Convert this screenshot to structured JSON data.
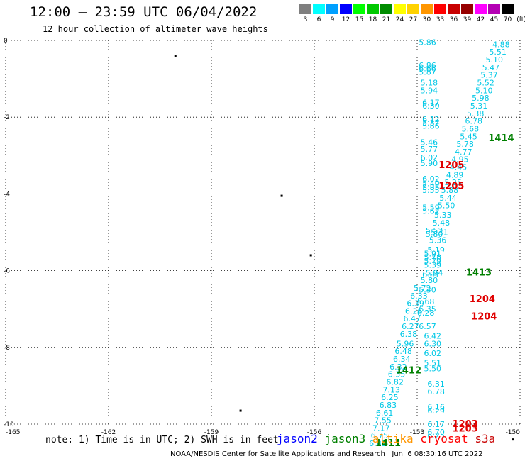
{
  "title": "12:00 – 23:59 UTC 06/04/2022",
  "subtitle": "12 hour collection of altimeter wave heights",
  "colorbar": {
    "unit_label": "(ft)",
    "swatches": [
      {
        "label": "3",
        "color": "#7f7f7f"
      },
      {
        "label": "6",
        "color": "#00ffff"
      },
      {
        "label": "9",
        "color": "#00a0ff"
      },
      {
        "label": "12",
        "color": "#0000ff"
      },
      {
        "label": "15",
        "color": "#00ff00"
      },
      {
        "label": "18",
        "color": "#00c800"
      },
      {
        "label": "21",
        "color": "#008c00"
      },
      {
        "label": "24",
        "color": "#ffff00"
      },
      {
        "label": "27",
        "color": "#ffd200"
      },
      {
        "label": "30",
        "color": "#ff9600"
      },
      {
        "label": "33",
        "color": "#ff0000"
      },
      {
        "label": "36",
        "color": "#c80000"
      },
      {
        "label": "39",
        "color": "#960000"
      },
      {
        "label": "42",
        "color": "#ff00ff"
      },
      {
        "label": "45",
        "color": "#b400b4"
      },
      {
        "label": "70",
        "color": "#000000"
      }
    ]
  },
  "axes": {
    "lon_ticks": [
      "-165",
      "-162",
      "-159",
      "-156",
      "-153",
      "-150"
    ],
    "lat_ticks": [
      "0",
      "-2",
      "-4",
      "-6",
      "-8",
      "-10"
    ],
    "lon_range": [
      -165,
      -150
    ],
    "lat_range": [
      -10,
      0
    ]
  },
  "point_color": "#00c8e6",
  "swh_points": [
    {
      "lon": -152.7,
      "lat": -0.05,
      "v": "5.86"
    },
    {
      "lon": -152.7,
      "lat": -0.65,
      "v": "6.86"
    },
    {
      "lon": -152.7,
      "lat": -0.73,
      "v": "6.66"
    },
    {
      "lon": -152.7,
      "lat": -0.82,
      "v": "5.87"
    },
    {
      "lon": -152.65,
      "lat": -1.1,
      "v": "5.18"
    },
    {
      "lon": -152.65,
      "lat": -1.3,
      "v": "5.94"
    },
    {
      "lon": -152.6,
      "lat": -1.62,
      "v": "6.17"
    },
    {
      "lon": -152.6,
      "lat": -1.7,
      "v": "6.30"
    },
    {
      "lon": -152.6,
      "lat": -2.05,
      "v": "6.12"
    },
    {
      "lon": -152.6,
      "lat": -2.14,
      "v": "5.37"
    },
    {
      "lon": -152.6,
      "lat": -2.23,
      "v": "5.86"
    },
    {
      "lon": -152.65,
      "lat": -2.65,
      "v": "5.46"
    },
    {
      "lon": -152.65,
      "lat": -2.83,
      "v": "5.77"
    },
    {
      "lon": -152.65,
      "lat": -3.05,
      "v": "6.02"
    },
    {
      "lon": -152.65,
      "lat": -3.2,
      "v": "5.90"
    },
    {
      "lon": -152.6,
      "lat": -3.6,
      "v": "6.02"
    },
    {
      "lon": -152.6,
      "lat": -3.72,
      "v": "5.40"
    },
    {
      "lon": -152.6,
      "lat": -3.83,
      "v": "5.85"
    },
    {
      "lon": -152.6,
      "lat": -3.9,
      "v": "5.55"
    },
    {
      "lon": -152.6,
      "lat": -4.35,
      "v": "5.59"
    },
    {
      "lon": -152.6,
      "lat": -4.45,
      "v": "5.62"
    },
    {
      "lon": -152.5,
      "lat": -4.95,
      "v": "5.52"
    },
    {
      "lon": -152.5,
      "lat": -5.05,
      "v": "5.80"
    },
    {
      "lon": -152.55,
      "lat": -5.55,
      "v": "5.91"
    },
    {
      "lon": -152.55,
      "lat": -5.65,
      "v": "5.78"
    },
    {
      "lon": -152.55,
      "lat": -5.75,
      "v": "5.79"
    },
    {
      "lon": -152.55,
      "lat": -5.85,
      "v": "5.39"
    },
    {
      "lon": -152.5,
      "lat": -6.05,
      "v": "5.94"
    },
    {
      "lon": -152.6,
      "lat": -6.1,
      "v": "6.01"
    },
    {
      "lon": -152.85,
      "lat": -6.45,
      "v": "5.72"
    },
    {
      "lon": -152.95,
      "lat": -6.65,
      "v": "6.33"
    },
    {
      "lon": -153.05,
      "lat": -6.85,
      "v": "6.39"
    },
    {
      "lon": -153.1,
      "lat": -7.05,
      "v": "6.26"
    },
    {
      "lon": -153.15,
      "lat": -7.25,
      "v": "6.47"
    },
    {
      "lon": -153.2,
      "lat": -7.45,
      "v": "6.27"
    },
    {
      "lon": -153.25,
      "lat": -7.65,
      "v": "6.38"
    },
    {
      "lon": -153.35,
      "lat": -7.9,
      "v": "5.96"
    },
    {
      "lon": -153.4,
      "lat": -8.1,
      "v": "6.48"
    },
    {
      "lon": -153.45,
      "lat": -8.3,
      "v": "6.34"
    },
    {
      "lon": -153.55,
      "lat": -8.5,
      "v": "6.32"
    },
    {
      "lon": -153.6,
      "lat": -8.7,
      "v": "6.35"
    },
    {
      "lon": -153.65,
      "lat": -8.9,
      "v": "6.82"
    },
    {
      "lon": -153.75,
      "lat": -9.1,
      "v": "7.13"
    },
    {
      "lon": -153.8,
      "lat": -9.3,
      "v": "6.25"
    },
    {
      "lon": -153.85,
      "lat": -9.5,
      "v": "6.83"
    },
    {
      "lon": -153.95,
      "lat": -9.7,
      "v": "6.61"
    },
    {
      "lon": -154.0,
      "lat": -9.9,
      "v": "7.55"
    },
    {
      "lon": -154.05,
      "lat": -10.1,
      "v": "7.17"
    },
    {
      "lon": -154.1,
      "lat": -10.3,
      "v": "6.75"
    },
    {
      "lon": -154.15,
      "lat": -10.5,
      "v": "6.81"
    },
    {
      "lon": -150.55,
      "lat": -0.1,
      "v": "4.88"
    },
    {
      "lon": -150.65,
      "lat": -0.3,
      "v": "5.51"
    },
    {
      "lon": -150.75,
      "lat": -0.5,
      "v": "5.10"
    },
    {
      "lon": -150.85,
      "lat": -0.7,
      "v": "5.47"
    },
    {
      "lon": -150.9,
      "lat": -0.9,
      "v": "5.37"
    },
    {
      "lon": -151.0,
      "lat": -1.1,
      "v": "5.52"
    },
    {
      "lon": -151.05,
      "lat": -1.3,
      "v": "5.10"
    },
    {
      "lon": -151.15,
      "lat": -1.5,
      "v": "5.98"
    },
    {
      "lon": -151.2,
      "lat": -1.7,
      "v": "5.31"
    },
    {
      "lon": -151.3,
      "lat": -1.9,
      "v": "5.38"
    },
    {
      "lon": -151.35,
      "lat": -2.1,
      "v": "6.78"
    },
    {
      "lon": -151.45,
      "lat": -2.3,
      "v": "5.68"
    },
    {
      "lon": -151.5,
      "lat": -2.5,
      "v": "5.45"
    },
    {
      "lon": -151.6,
      "lat": -2.7,
      "v": "5.78"
    },
    {
      "lon": -151.65,
      "lat": -2.9,
      "v": "4.77"
    },
    {
      "lon": -151.75,
      "lat": -3.1,
      "v": "4.95"
    },
    {
      "lon": -151.8,
      "lat": -3.3,
      "v": "4.45"
    },
    {
      "lon": -151.9,
      "lat": -3.5,
      "v": "4.89"
    },
    {
      "lon": -151.95,
      "lat": -3.7,
      "v": "5.25"
    },
    {
      "lon": -152.05,
      "lat": -3.9,
      "v": "5.88"
    },
    {
      "lon": -152.1,
      "lat": -4.1,
      "v": "5.44"
    },
    {
      "lon": -152.15,
      "lat": -4.3,
      "v": "5.50"
    },
    {
      "lon": -152.25,
      "lat": -4.55,
      "v": "5.33"
    },
    {
      "lon": -152.3,
      "lat": -4.75,
      "v": "5.48"
    },
    {
      "lon": -152.35,
      "lat": -5.0,
      "v": "5.31"
    },
    {
      "lon": -152.4,
      "lat": -5.2,
      "v": "5.36"
    },
    {
      "lon": -152.45,
      "lat": -5.45,
      "v": "5.19"
    },
    {
      "lon": -152.65,
      "lat": -6.25,
      "v": "5.80"
    },
    {
      "lon": -152.7,
      "lat": -6.5,
      "v": "5.30"
    },
    {
      "lon": -152.75,
      "lat": -6.8,
      "v": "5.68"
    },
    {
      "lon": -152.7,
      "lat": -7.0,
      "v": "6.35"
    },
    {
      "lon": -152.75,
      "lat": -7.1,
      "v": "6.28"
    },
    {
      "lon": -152.7,
      "lat": -7.45,
      "v": "6.57"
    },
    {
      "lon": -152.55,
      "lat": -7.7,
      "v": "6.42"
    },
    {
      "lon": -152.55,
      "lat": -7.9,
      "v": "6.30"
    },
    {
      "lon": -152.55,
      "lat": -8.15,
      "v": "6.02"
    },
    {
      "lon": -152.55,
      "lat": -8.4,
      "v": "5.51"
    },
    {
      "lon": -152.55,
      "lat": -8.55,
      "v": "5.50"
    },
    {
      "lon": -152.45,
      "lat": -8.95,
      "v": "6.31"
    },
    {
      "lon": -152.45,
      "lat": -9.15,
      "v": "6.78"
    },
    {
      "lon": -152.45,
      "lat": -9.55,
      "v": "6.16"
    },
    {
      "lon": -152.45,
      "lat": -9.65,
      "v": "6.29"
    },
    {
      "lon": -152.45,
      "lat": -10.0,
      "v": "6.17"
    },
    {
      "lon": -152.45,
      "lat": -10.2,
      "v": "6.70"
    },
    {
      "lon": -152.45,
      "lat": -10.3,
      "v": "6.25"
    }
  ],
  "time_labels": [
    {
      "lon": -150.55,
      "lat": -2.55,
      "t": "1414",
      "color": "#008000"
    },
    {
      "lon": -152.0,
      "lat": -3.25,
      "t": "1205",
      "color": "#e00000"
    },
    {
      "lon": -152.0,
      "lat": -3.8,
      "t": "1205",
      "color": "#e00000"
    },
    {
      "lon": -151.2,
      "lat": -6.05,
      "t": "1413",
      "color": "#008000"
    },
    {
      "lon": -151.1,
      "lat": -6.75,
      "t": "1204",
      "color": "#e00000"
    },
    {
      "lon": -151.05,
      "lat": -7.2,
      "t": "1204",
      "color": "#e00000"
    },
    {
      "lon": -153.25,
      "lat": -8.6,
      "t": "1412",
      "color": "#008000"
    },
    {
      "lon": -151.6,
      "lat": -10.0,
      "t": "1203",
      "color": "#e00000"
    },
    {
      "lon": -151.6,
      "lat": -10.12,
      "t": "1203",
      "color": "#e00000"
    },
    {
      "lon": -153.85,
      "lat": -10.5,
      "t": "1411",
      "color": "#008000"
    }
  ],
  "islands": [
    {
      "lon": -160.05,
      "lat": -0.4
    },
    {
      "lon": -156.95,
      "lat": -4.05
    },
    {
      "lon": -156.1,
      "lat": -5.6
    },
    {
      "lon": -158.15,
      "lat": -9.65
    },
    {
      "lon": -150.2,
      "lat": -10.4
    }
  ],
  "note": "note: 1) Time is in UTC; 2) SWH is in feet",
  "legend": [
    {
      "label": "jason2",
      "color": "#0000ff"
    },
    {
      "label": "jason3",
      "color": "#008000"
    },
    {
      "label": "altika",
      "color": "#ff9600"
    },
    {
      "label": "cryosat",
      "color": "#ff0000"
    },
    {
      "label": "s3a",
      "color": "#c80000"
    }
  ],
  "footer": "NOAA/NESDIS Center for Satellite Applications and Research   Jun  6 08:30:16 UTC 2022"
}
